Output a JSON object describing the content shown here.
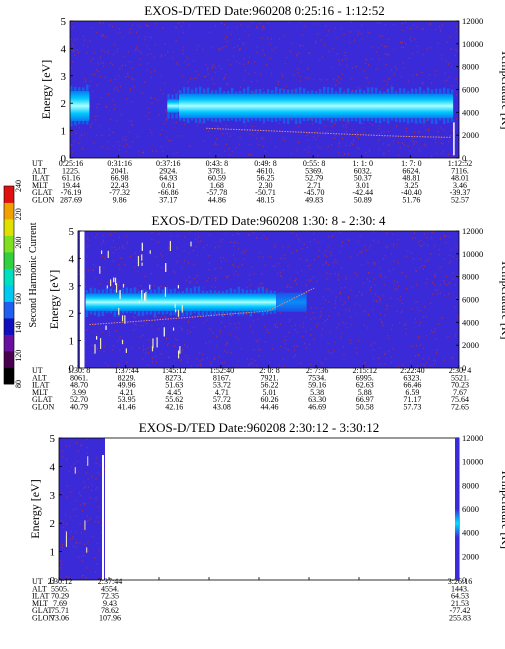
{
  "colors": {
    "background": "#3a2ad8",
    "speckle_red": "#c0303a",
    "band_cyan": "#00d8ff",
    "band_core": "#a8ffff",
    "band_blue": "#0a78f0",
    "temperature_line": "#e08a78"
  },
  "colorbar": {
    "label": "Second Harmonic Current",
    "ticks": [
      "80",
      "120",
      "140",
      "160",
      "180",
      "200",
      "220",
      "240"
    ],
    "colors": [
      "#000000",
      "#4a0050",
      "#6a10a0",
      "#1010c0",
      "#2060f0",
      "#00c8f0",
      "#00e0c0",
      "#30d040",
      "#80e020",
      "#e0e000",
      "#f0a000",
      "#e01010"
    ]
  },
  "row_labels": [
    "UT",
    "ALT",
    "ILAT",
    "MLT",
    "GLAT",
    "GLON"
  ],
  "chart_data": [
    {
      "type": "heatmap",
      "title": "EXOS-D/TED   Date:960208   0:25:16 - 1:12:52",
      "ylabel": "Energy [eV]",
      "y2label": "Temperature [K]",
      "ylim": [
        0,
        5
      ],
      "y_ticks": [
        "0",
        "1",
        "2",
        "3",
        "4",
        "5"
      ],
      "y2lim": [
        0,
        12000
      ],
      "y2_ticks": [
        "0",
        "2000",
        "4000",
        "6000",
        "8000",
        "10000",
        "12000"
      ],
      "data_extent": [
        0,
        1
      ],
      "bands": [
        {
          "x0": 0.0,
          "x1": 0.05,
          "y_center": 1.9,
          "height": 1.1,
          "color": "cyan"
        },
        {
          "x0": 0.25,
          "x1": 0.28,
          "y_center": 1.9,
          "height": 0.5,
          "color": "cyan"
        },
        {
          "x0": 0.28,
          "x1": 0.985,
          "y_center": 1.9,
          "height": 0.9,
          "color": "cyan"
        }
      ],
      "temperature": {
        "x": [
          0.35,
          0.5,
          0.7,
          0.85,
          0.98
        ],
        "y": [
          2600,
          2400,
          2100,
          1900,
          1800
        ]
      },
      "columns": [
        {
          "UT": "0:25:16",
          "ALT": "1225.",
          "ILAT": "61.16",
          "MLT": "19.44",
          "GLAT": "-76.19",
          "GLON": "287.69"
        },
        {
          "UT": "0:31:16",
          "ALT": "2041.",
          "ILAT": "66.98",
          "MLT": "22.43",
          "GLAT": "-77.32",
          "GLON": "9.86"
        },
        {
          "UT": "0:37:16",
          "ALT": "2924.",
          "ILAT": "64.93",
          "MLT": "0.61",
          "GLAT": "-66.86",
          "GLON": "37.17"
        },
        {
          "UT": "0:43: 8",
          "ALT": "3781.",
          "ILAT": "60.59",
          "MLT": "1.68",
          "GLAT": "-57.78",
          "GLON": "44.86"
        },
        {
          "UT": "0:49: 8",
          "ALT": "4610.",
          "ILAT": "56.25",
          "MLT": "2.30",
          "GLAT": "-50.71",
          "GLON": "48.15"
        },
        {
          "UT": "0:55: 8",
          "ALT": "5369.",
          "ILAT": "52.79",
          "MLT": "2.71",
          "GLAT": "-45.70",
          "GLON": "49.83"
        },
        {
          "UT": "1: 1: 0",
          "ALT": "6032.",
          "ILAT": "50.37",
          "MLT": "3.01",
          "GLAT": "-42.44",
          "GLON": "50.89"
        },
        {
          "UT": "1: 7: 0",
          "ALT": "6624.",
          "ILAT": "48.81",
          "MLT": "3.25",
          "GLAT": "-40.40",
          "GLON": "51.76"
        },
        {
          "UT": "1:12:52",
          "ALT": "7116.",
          "ILAT": "48.01",
          "MLT": "3.46",
          "GLAT": "-39.37",
          "GLON": "52.57"
        }
      ]
    },
    {
      "type": "heatmap",
      "title": "EXOS-D/TED   Date:960208   1:30: 8 - 2:30: 4",
      "ylabel": "Energy [eV]",
      "y2label": "Temperature [K]",
      "ylim": [
        0,
        5
      ],
      "y_ticks": [
        "0",
        "1",
        "2",
        "3",
        "4",
        "5"
      ],
      "y2lim": [
        0,
        12000
      ],
      "y2_ticks": [
        "0",
        "2000",
        "4000",
        "6000",
        "8000",
        "10000",
        "12000"
      ],
      "data_extent": [
        0,
        1
      ],
      "bands": [
        {
          "x0": 0.02,
          "x1": 0.52,
          "y_center": 2.4,
          "height": 0.65,
          "color": "cyan"
        },
        {
          "x0": 0.52,
          "x1": 0.6,
          "y_center": 2.4,
          "height": 0.7,
          "color": "blue"
        }
      ],
      "temperature": {
        "x": [
          0.03,
          0.2,
          0.35,
          0.5,
          0.62
        ],
        "y": [
          3800,
          4200,
          4600,
          5000,
          7000
        ]
      },
      "columns": [
        {
          "UT": "1:30: 8",
          "ALT": "8061.",
          "ILAT": "48.70",
          "MLT": "3.99",
          "GLAT": "52.70",
          "GLON": "40.79"
        },
        {
          "UT": "1:37:44",
          "ALT": "8229.",
          "ILAT": "49.96",
          "MLT": "4.21",
          "GLAT": "53.95",
          "GLON": "41.46"
        },
        {
          "UT": "1:45:12",
          "ALT": "8273.",
          "ILAT": "51.63",
          "MLT": "4.45",
          "GLAT": "55.62",
          "GLON": "42.16"
        },
        {
          "UT": "1:52:40",
          "ALT": "8167.",
          "ILAT": "53.72",
          "MLT": "4.71",
          "GLAT": "57.72",
          "GLON": "43.08"
        },
        {
          "UT": "2: 0: 8",
          "ALT": "7921.",
          "ILAT": "56.22",
          "MLT": "5.01",
          "GLAT": "60.26",
          "GLON": "44.46"
        },
        {
          "UT": "2: 7:36",
          "ALT": "7534.",
          "ILAT": "59.16",
          "MLT": "5.38",
          "GLAT": "63.30",
          "GLON": "46.69"
        },
        {
          "UT": "2:15:12",
          "ALT": "6995.",
          "ILAT": "62.63",
          "MLT": "5.88",
          "GLAT": "66.97",
          "GLON": "50.58"
        },
        {
          "UT": "2:22:40",
          "ALT": "6323.",
          "ILAT": "66.46",
          "MLT": "6.59",
          "GLAT": "71.17",
          "GLON": "57.73"
        },
        {
          "UT": "2:30: 4",
          "ALT": "5521.",
          "ILAT": "70.23",
          "MLT": "7.67",
          "GLAT": "75.64",
          "GLON": "72.65"
        }
      ]
    },
    {
      "type": "heatmap",
      "title": "EXOS-D/TED   Date:960208   2:30:12 - 3:30:12",
      "ylabel": "Energy [eV]",
      "y2label": "Temperature [K]",
      "ylim": [
        0,
        5
      ],
      "y_ticks": [
        "0",
        "1",
        "2",
        "3",
        "4",
        "5"
      ],
      "y2lim": [
        0,
        12000
      ],
      "y2_ticks": [
        "0",
        "2000",
        "4000",
        "6000",
        "8000",
        "10000",
        "12000"
      ],
      "data_extent": [
        0,
        0.115
      ],
      "bands": [],
      "temperature": {
        "x": [],
        "y": []
      },
      "columns": [
        {
          "UT": "2:30:12",
          "ALT": "5505.",
          "ILAT": "70.29",
          "MLT": "7.69",
          "GLAT": "75.71",
          "GLON": "73.06"
        },
        {
          "UT": "2:37:44",
          "ALT": "4554.",
          "ILAT": "72.35",
          "MLT": "9.43",
          "GLAT": "78.62",
          "GLON": "107.96"
        },
        {
          "UT": "",
          "ALT": "",
          "ILAT": "",
          "MLT": "",
          "GLAT": "",
          "GLON": ""
        },
        {
          "UT": "",
          "ALT": "",
          "ILAT": "",
          "MLT": "",
          "GLAT": "",
          "GLON": ""
        },
        {
          "UT": "",
          "ALT": "",
          "ILAT": "",
          "MLT": "",
          "GLAT": "",
          "GLON": ""
        },
        {
          "UT": "",
          "ALT": "",
          "ILAT": "",
          "MLT": "",
          "GLAT": "",
          "GLON": ""
        },
        {
          "UT": "",
          "ALT": "",
          "ILAT": "",
          "MLT": "",
          "GLAT": "",
          "GLON": ""
        },
        {
          "UT": "",
          "ALT": "",
          "ILAT": "",
          "MLT": "",
          "GLAT": "",
          "GLON": ""
        },
        {
          "UT": "3:26:16",
          "ALT": "1443.",
          "ILAT": "64.53",
          "MLT": "21.53",
          "GLAT": "-77.42",
          "GLON": "255.83"
        }
      ]
    }
  ]
}
